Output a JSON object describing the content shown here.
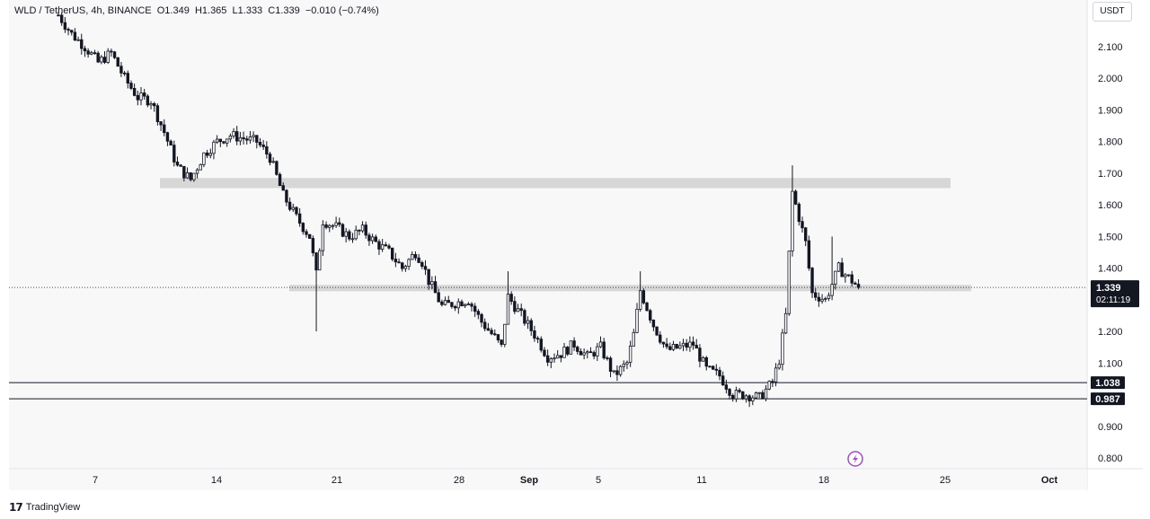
{
  "header": {
    "symbol": "WLD / TetherUS, 4h, BINANCE",
    "ohlc": "O1.349  H1.365  L1.333  C1.339  −0.010 (−0.74%)"
  },
  "currency_button": "USDT",
  "footer": {
    "brand": "TradingView"
  },
  "colors": {
    "candle": "#131722",
    "zone": "#d7d7d7",
    "background": "#ffffff",
    "panel": "#f8f8f8",
    "flash": "#a24cc6"
  },
  "chart_data": {
    "type": "candlestick",
    "title": "",
    "xlabel": "",
    "ylabel": "",
    "ylim": [
      0.76,
      2.19
    ],
    "x_ticks": [
      "7",
      "14",
      "21",
      "28",
      "Sep",
      "5",
      "11",
      "18",
      "25",
      "Oct"
    ],
    "y_ticks": [
      "2.100",
      "2.000",
      "1.900",
      "1.800",
      "1.700",
      "1.600",
      "1.500",
      "1.400",
      "1.200",
      "1.100",
      "0.900",
      "0.800"
    ],
    "last_price_label": "1.339",
    "countdown_label": "02:11:19",
    "horizontal_lines": [
      {
        "value": 1.038,
        "label": "1.038"
      },
      {
        "value": 0.987,
        "label": "0.987"
      }
    ],
    "zones": [
      {
        "from": 1.653,
        "to": 1.685
      },
      {
        "from": 1.327,
        "to": 1.347
      }
    ],
    "price_path": [
      [
        0,
        2.2
      ],
      [
        4,
        2.14
      ],
      [
        8,
        2.1
      ],
      [
        12,
        2.05
      ],
      [
        16,
        2.08
      ],
      [
        20,
        2.0
      ],
      [
        24,
        1.94
      ],
      [
        28,
        1.93
      ],
      [
        32,
        1.83
      ],
      [
        36,
        1.72
      ],
      [
        40,
        1.68
      ],
      [
        44,
        1.76
      ],
      [
        48,
        1.8
      ],
      [
        52,
        1.82
      ],
      [
        56,
        1.81
      ],
      [
        60,
        1.8
      ],
      [
        64,
        1.75
      ],
      [
        68,
        1.63
      ],
      [
        72,
        1.56
      ],
      [
        76,
        1.5
      ],
      [
        78,
        1.38
      ],
      [
        80,
        1.55
      ],
      [
        84,
        1.53
      ],
      [
        88,
        1.5
      ],
      [
        92,
        1.52
      ],
      [
        96,
        1.48
      ],
      [
        100,
        1.45
      ],
      [
        104,
        1.4
      ],
      [
        108,
        1.45
      ],
      [
        110,
        1.42
      ],
      [
        112,
        1.36
      ],
      [
        116,
        1.28
      ],
      [
        120,
        1.29
      ],
      [
        124,
        1.3
      ],
      [
        128,
        1.23
      ],
      [
        132,
        1.18
      ],
      [
        134,
        1.15
      ],
      [
        136,
        1.31
      ],
      [
        140,
        1.25
      ],
      [
        144,
        1.19
      ],
      [
        148,
        1.12
      ],
      [
        152,
        1.13
      ],
      [
        156,
        1.16
      ],
      [
        160,
        1.12
      ],
      [
        164,
        1.15
      ],
      [
        168,
        1.06
      ],
      [
        172,
        1.1
      ],
      [
        174,
        1.19
      ],
      [
        176,
        1.33
      ],
      [
        180,
        1.22
      ],
      [
        184,
        1.14
      ],
      [
        188,
        1.15
      ],
      [
        192,
        1.16
      ],
      [
        196,
        1.08
      ],
      [
        200,
        1.06
      ],
      [
        204,
        1.0
      ],
      [
        208,
        1.0
      ],
      [
        212,
        0.99
      ],
      [
        216,
        1.04
      ],
      [
        218,
        1.11
      ],
      [
        220,
        1.25
      ],
      [
        222,
        1.64
      ],
      [
        224,
        1.56
      ],
      [
        226,
        1.48
      ],
      [
        228,
        1.32
      ],
      [
        232,
        1.3
      ],
      [
        236,
        1.4
      ],
      [
        240,
        1.36
      ],
      [
        242,
        1.339
      ]
    ]
  }
}
